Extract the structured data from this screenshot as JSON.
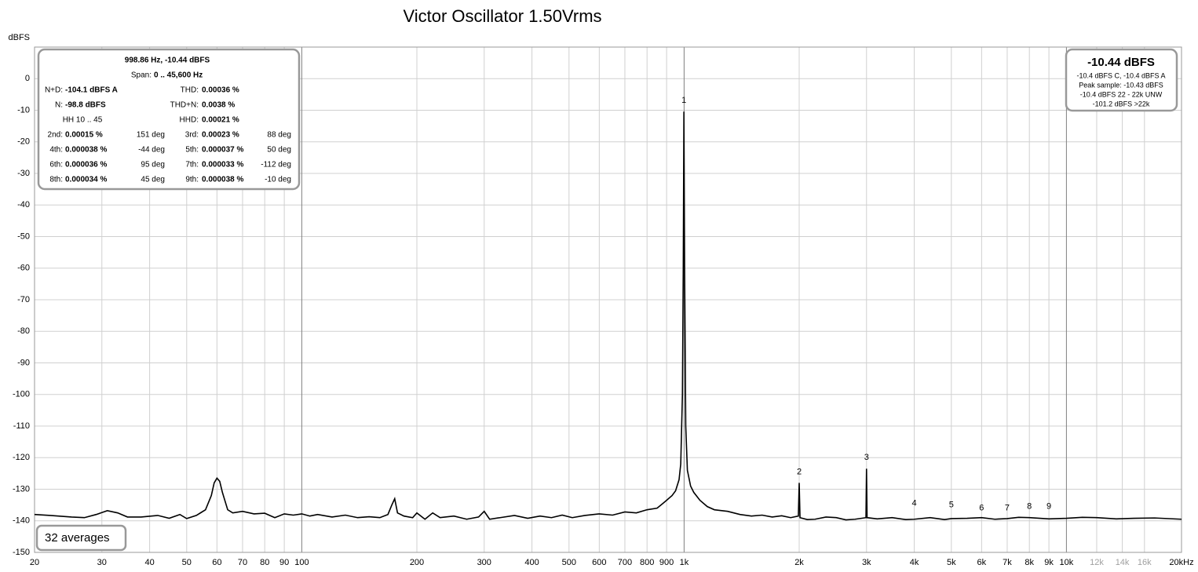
{
  "chart_data": {
    "type": "line",
    "title": "Victor Oscillator 1.50Vrms",
    "y_label": "dBFS",
    "log_x": true,
    "grid": true,
    "color": "#000000",
    "xlim": [
      20,
      20000
    ],
    "ylim": [
      -150,
      10
    ],
    "yticks": [
      0,
      -10,
      -20,
      -30,
      -40,
      -50,
      -60,
      -70,
      -80,
      -90,
      -100,
      -110,
      -120,
      -130,
      -140,
      -150
    ],
    "xticks": [
      20,
      30,
      40,
      50,
      60,
      70,
      80,
      90,
      100,
      200,
      300,
      400,
      500,
      600,
      700,
      800,
      900,
      {
        "value": 1000,
        "label": "1k"
      },
      {
        "value": 2000,
        "label": "2k"
      },
      {
        "value": 3000,
        "label": "3k"
      },
      {
        "value": 4000,
        "label": "4k"
      },
      {
        "value": 5000,
        "label": "5k"
      },
      {
        "value": 6000,
        "label": "6k"
      },
      {
        "value": 7000,
        "label": "7k"
      },
      {
        "value": 8000,
        "label": "8k"
      },
      {
        "value": 9000,
        "label": "9k"
      },
      {
        "value": 10000,
        "label": "10k"
      },
      {
        "value": 12000,
        "label": "12k",
        "color": "#a0a0a0"
      },
      {
        "value": 14000,
        "label": "14k",
        "color": "#a0a0a0"
      },
      {
        "value": 16000,
        "label": "16k",
        "color": "#a0a0a0"
      },
      {
        "value": 20000,
        "label": "20kHz"
      }
    ],
    "x": [
      20,
      22,
      25,
      27,
      29,
      31,
      33,
      35,
      38,
      42,
      45,
      48,
      50,
      53,
      56,
      58,
      59,
      60,
      61,
      62,
      64,
      66,
      70,
      75,
      80,
      85,
      90,
      95,
      100,
      105,
      110,
      120,
      130,
      140,
      150,
      160,
      168,
      172,
      175,
      178,
      185,
      195,
      200,
      210,
      220,
      230,
      250,
      270,
      290,
      300,
      310,
      330,
      360,
      390,
      420,
      450,
      480,
      510,
      550,
      600,
      650,
      700,
      750,
      800,
      850,
      880,
      900,
      930,
      950,
      970,
      980,
      990,
      995,
      998.86,
      1003,
      1010,
      1020,
      1040,
      1060,
      1100,
      1150,
      1200,
      1300,
      1400,
      1500,
      1600,
      1700,
      1800,
      1900,
      1990,
      2000,
      2010,
      2100,
      2200,
      2350,
      2500,
      2650,
      2800,
      2990,
      3000,
      3010,
      3200,
      3500,
      3800,
      4000,
      4400,
      4800,
      5000,
      5500,
      6000,
      6500,
      7000,
      7500,
      8000,
      9000,
      10000,
      11000,
      12000,
      13500,
      15000,
      17000,
      20000
    ],
    "values": [
      -138,
      -138.3,
      -138.8,
      -139,
      -138,
      -136.8,
      -137.5,
      -138.8,
      -138.8,
      -138.3,
      -139.2,
      -138,
      -139.3,
      -138.3,
      -136.5,
      -132,
      -128,
      -126.5,
      -127.5,
      -131,
      -136.5,
      -137.5,
      -137,
      -137.8,
      -137.6,
      -139,
      -137.8,
      -138.2,
      -137.8,
      -138.5,
      -138,
      -138.8,
      -138.2,
      -139,
      -138.7,
      -139,
      -138,
      -135,
      -133,
      -137.5,
      -138.5,
      -139,
      -137.5,
      -139.5,
      -137.5,
      -139,
      -138.5,
      -139.5,
      -138.8,
      -137,
      -139.5,
      -139,
      -138.3,
      -139.2,
      -138.5,
      -139,
      -138.2,
      -139,
      -138.3,
      -137.8,
      -138.2,
      -137.2,
      -137.5,
      -136.5,
      -136,
      -134.5,
      -133.5,
      -132,
      -130.5,
      -127,
      -122,
      -100,
      -60,
      -10.44,
      -60,
      -110,
      -124,
      -129,
      -131,
      -133.5,
      -135.5,
      -136.5,
      -137,
      -138,
      -138.5,
      -138.2,
      -138.8,
      -138.4,
      -139,
      -138.5,
      -128,
      -139,
      -139.6,
      -139.5,
      -138.8,
      -139,
      -139.7,
      -139.5,
      -139,
      -123.5,
      -139,
      -139.4,
      -139,
      -139.6,
      -139.5,
      -139,
      -139.6,
      -139.3,
      -139.2,
      -139,
      -139.5,
      -139.3,
      -138.9,
      -139,
      -139.4,
      -139.2,
      -138.9,
      -139,
      -139.4,
      -139.2,
      -139.1,
      -139.5
    ],
    "harmonic_markers": [
      {
        "label": "1",
        "x": 998.86,
        "y": -10.44
      },
      {
        "label": "2",
        "x": 2000,
        "y": -128
      },
      {
        "label": "3",
        "x": 3000,
        "y": -123.5
      },
      {
        "label": "4",
        "x": 4000,
        "y": -138
      },
      {
        "label": "5",
        "x": 5000,
        "y": -138.5
      },
      {
        "label": "6",
        "x": 6000,
        "y": -139.5
      },
      {
        "label": "7",
        "x": 7000,
        "y": -139.5
      },
      {
        "label": "8",
        "x": 8000,
        "y": -139
      },
      {
        "label": "9",
        "x": 9000,
        "y": -139
      }
    ],
    "left_panel": {
      "heading": "998.86 Hz, -10.44 dBFS",
      "span": [
        "Span:",
        "0 .. 45,600 Hz"
      ],
      "rows": [
        [
          [
            "N+D:",
            "-104.1 dBFS A"
          ],
          [
            "THD:",
            "0.00036 %"
          ]
        ],
        [
          [
            "N:",
            "-98.8 dBFS"
          ],
          [
            "THD+N:",
            "0.0038 %"
          ]
        ],
        [
          [
            "HH 10 .. 45"
          ],
          [
            "HHD:",
            "0.00021 %"
          ]
        ],
        [
          [
            "2nd:",
            "0.00015 %",
            "151 deg"
          ],
          [
            "3rd:",
            "0.00023 %",
            "88 deg"
          ]
        ],
        [
          [
            "4th:",
            "0.000038 %",
            "-44 deg"
          ],
          [
            "5th:",
            "0.000037 %",
            "50 deg"
          ]
        ],
        [
          [
            "6th:",
            "0.000036 %",
            "95 deg"
          ],
          [
            "7th:",
            "0.000033 %",
            "-112 deg"
          ]
        ],
        [
          [
            "8th:",
            "0.000034 %",
            "45 deg"
          ],
          [
            "9th:",
            "0.000038 %",
            "-10 deg"
          ]
        ]
      ]
    },
    "right_panel": {
      "heading": "-10.44 dBFS",
      "lines": [
        "-10.4 dBFS C, -10.4 dBFS A",
        "Peak sample: -10.43 dBFS",
        "-10.4 dBFS 22 - 22k UNW",
        "-101.2 dBFS >22k"
      ]
    },
    "averages": "32 averages"
  }
}
